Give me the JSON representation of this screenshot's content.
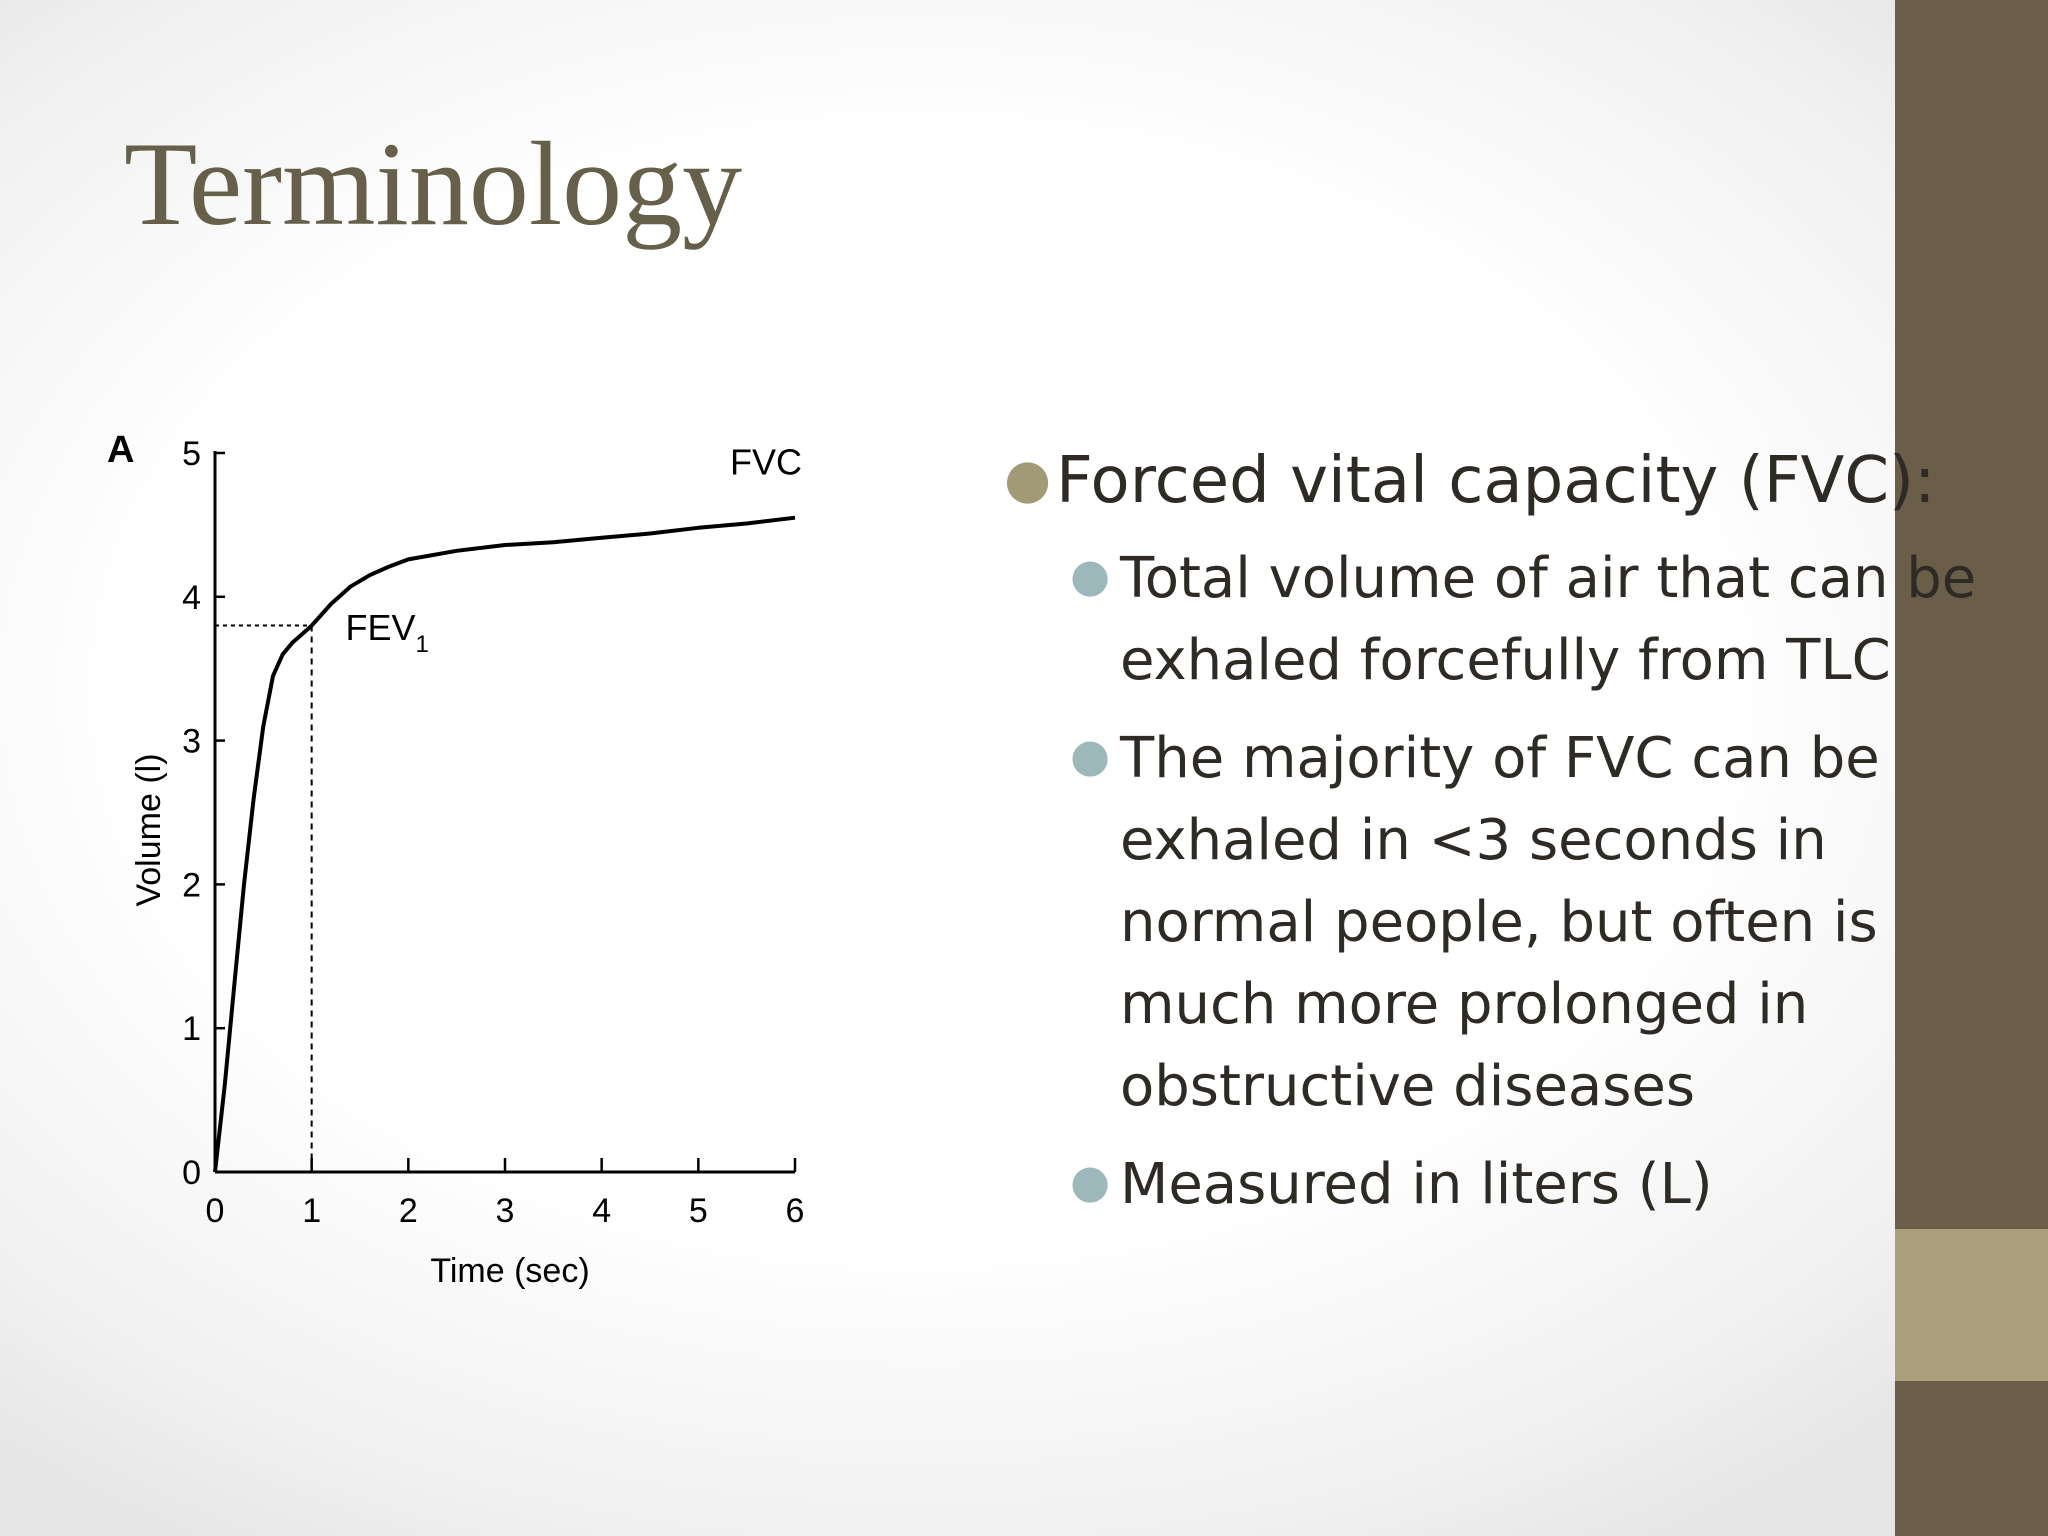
{
  "slide": {
    "title": "Terminology"
  },
  "chart_data": {
    "type": "line",
    "panel_label": "A",
    "xlabel": "Time (sec)",
    "ylabel": "Volume (l)",
    "xlim": [
      0,
      6
    ],
    "ylim": [
      0,
      5
    ],
    "x_ticks": [
      "0",
      "1",
      "2",
      "3",
      "4",
      "5",
      "6"
    ],
    "y_ticks": [
      "0",
      "1",
      "2",
      "3",
      "4",
      "5"
    ],
    "series": [
      {
        "x": [
          0,
          0.1,
          0.2,
          0.3,
          0.4,
          0.5,
          0.6,
          0.7,
          0.8,
          0.9,
          1.0,
          1.2,
          1.4,
          1.6,
          1.8,
          2.0,
          2.5,
          3.0,
          3.5,
          4.0,
          4.5,
          5.0,
          5.5,
          6.0
        ],
        "y": [
          0,
          0.6,
          1.3,
          2.0,
          2.6,
          3.1,
          3.45,
          3.6,
          3.68,
          3.74,
          3.8,
          3.95,
          4.07,
          4.15,
          4.21,
          4.26,
          4.32,
          4.36,
          4.38,
          4.41,
          4.44,
          4.48,
          4.51,
          4.55
        ]
      }
    ],
    "annotations": [
      {
        "text": "FVC",
        "x": 5.7,
        "y": 4.85
      },
      {
        "text": "FEV",
        "subscript": "1",
        "x": 1.35,
        "y": 3.7
      }
    ],
    "reference_lines": {
      "fev1_time": 1,
      "fev1_volume": 3.8
    }
  },
  "bullets": [
    {
      "text": "Forced vital capacity (FVC):",
      "children": [
        "Total volume of air that can be exhaled forcefully from TLC",
        "The majority of FVC can be exhaled in <3 seconds in normal people, but often is much more prolonged in obstructive diseases",
        "Measured in liters (L)"
      ]
    }
  ],
  "colors": {
    "title": "#66604b",
    "side_bar": "#6a5e48",
    "side_accent": "#ab9f7c",
    "bullet_primary": "#a39b78",
    "bullet_secondary": "#9db8bb"
  }
}
